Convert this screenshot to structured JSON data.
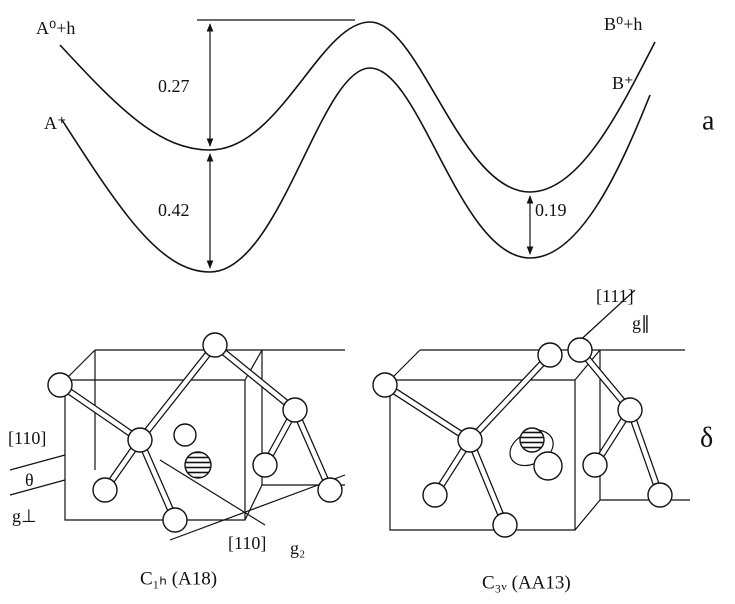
{
  "panel_a": {
    "panel_label": "a",
    "upper_curve": {
      "left_label": "A⁰+h",
      "right_label": "B⁰+h"
    },
    "lower_curve": {
      "left_label": "A⁺",
      "right_label": "B⁺"
    },
    "gaps": [
      "0.27",
      "0.42",
      "0.19"
    ]
  },
  "panel_b": {
    "panel_label": "δ",
    "left": {
      "caption": "C₁ₕ (A18)",
      "labels": [
        "[110]",
        "θ",
        "g⊥",
        "[110]",
        "g₂"
      ]
    },
    "right": {
      "caption": "C₃ᵥ (AA13)",
      "labels": [
        "[111]",
        "g∥"
      ]
    }
  }
}
